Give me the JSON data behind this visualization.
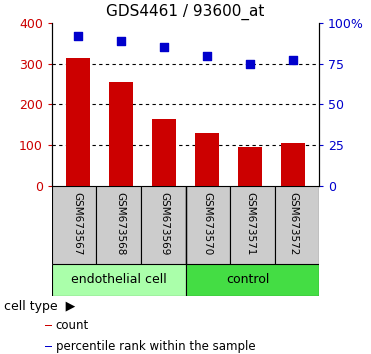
{
  "title": "GDS4461 / 93600_at",
  "samples": [
    "GSM673567",
    "GSM673568",
    "GSM673569",
    "GSM673570",
    "GSM673571",
    "GSM673572"
  ],
  "counts": [
    315,
    255,
    165,
    130,
    95,
    105
  ],
  "percentile_ranks": [
    92,
    89,
    85,
    80,
    75,
    77
  ],
  "left_ylim": [
    0,
    400
  ],
  "right_ylim": [
    0,
    100
  ],
  "left_yticks": [
    0,
    100,
    200,
    300,
    400
  ],
  "right_yticks": [
    0,
    25,
    50,
    75,
    100
  ],
  "right_yticklabels": [
    "0",
    "25",
    "50",
    "75",
    "100%"
  ],
  "bar_color": "#cc0000",
  "dot_color": "#0000cc",
  "group1_label": "endothelial cell",
  "group2_label": "control",
  "group1_color": "#aaffaa",
  "group2_color": "#44dd44",
  "sample_bg": "#cccccc",
  "cell_type_label": "cell type",
  "legend_count": "count",
  "legend_pct": "percentile rank within the sample",
  "left_tick_color": "#cc0000",
  "right_tick_color": "#0000cc",
  "plot_bg": "#ffffff",
  "bar_width": 0.55,
  "grid_color": "#000000",
  "title_fontsize": 11,
  "tick_fontsize": 9,
  "sample_fontsize": 7.5,
  "group_fontsize": 9,
  "legend_fontsize": 8.5,
  "celltype_fontsize": 9
}
